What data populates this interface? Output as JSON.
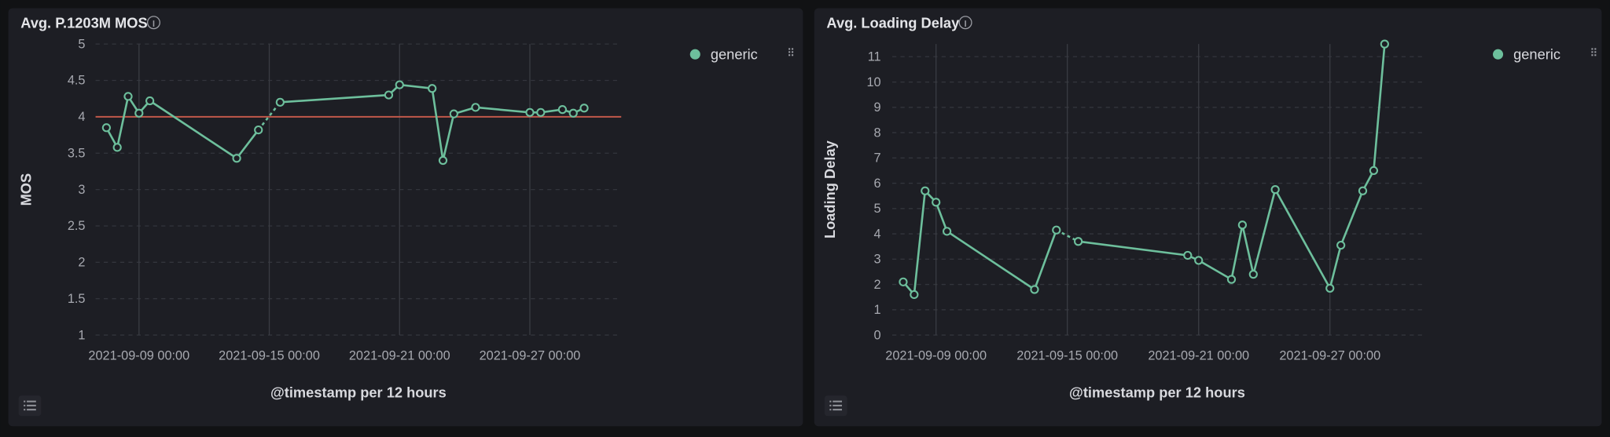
{
  "chart_data": [
    {
      "type": "line",
      "title": "Avg. P.1203M MOS",
      "x_label": "@timestamp per 12 hours",
      "y_label": "MOS",
      "x": [
        "2021-09-07 12:00",
        "2021-09-08 00:00",
        "2021-09-08 12:00",
        "2021-09-09 00:00",
        "2021-09-09 12:00",
        "2021-09-13 12:00",
        "2021-09-14 12:00",
        "2021-09-15 00:00",
        "2021-09-15 12:00",
        "2021-09-20 12:00",
        "2021-09-21 00:00",
        "2021-09-22 12:00",
        "2021-09-23 00:00",
        "2021-09-23 12:00",
        "2021-09-24 12:00",
        "2021-09-27 00:00",
        "2021-09-27 12:00",
        "2021-09-28 12:00",
        "2021-09-29 00:00",
        "2021-09-29 12:00"
      ],
      "series": [
        {
          "name": "generic",
          "color": "#6dbf9c",
          "values": [
            3.85,
            3.58,
            4.28,
            4.05,
            4.22,
            3.43,
            3.82,
            null,
            4.2,
            4.3,
            4.44,
            4.39,
            3.4,
            4.04,
            4.13,
            4.06,
            4.06,
            4.1,
            4.05,
            4.12
          ]
        }
      ],
      "threshold": 4,
      "threshold_color": "#c0584a",
      "xlim": [
        "2021-09-07 00:00",
        "2021-10-01 05:00"
      ],
      "xticks": [
        "2021-09-09 00:00",
        "2021-09-15 00:00",
        "2021-09-21 00:00",
        "2021-09-27 00:00"
      ],
      "ylim": [
        1,
        5
      ],
      "yticks": [
        1,
        1.5,
        2,
        2.5,
        3,
        3.5,
        4,
        4.5,
        5
      ],
      "grid": true,
      "legend": "top-right"
    },
    {
      "type": "line",
      "title": "Avg. Loading Delay",
      "x_label": "@timestamp per 12 hours",
      "y_label": "Loading Delay",
      "x": [
        "2021-09-07 12:00",
        "2021-09-08 00:00",
        "2021-09-08 12:00",
        "2021-09-09 00:00",
        "2021-09-09 12:00",
        "2021-09-13 12:00",
        "2021-09-14 12:00",
        "2021-09-15 00:00",
        "2021-09-15 12:00",
        "2021-09-20 12:00",
        "2021-09-21 00:00",
        "2021-09-22 12:00",
        "2021-09-23 00:00",
        "2021-09-23 12:00",
        "2021-09-24 12:00",
        "2021-09-27 00:00",
        "2021-09-27 12:00",
        "2021-09-28 12:00",
        "2021-09-29 00:00",
        "2021-09-29 12:00"
      ],
      "series": [
        {
          "name": "generic",
          "color": "#6dbf9c",
          "values": [
            2.1,
            1.6,
            5.7,
            5.25,
            4.1,
            1.8,
            4.15,
            null,
            3.7,
            3.15,
            2.95,
            2.2,
            4.35,
            2.4,
            5.75,
            1.85,
            3.55,
            5.7,
            6.5,
            11.5
          ]
        }
      ],
      "xlim": [
        "2021-09-07 00:00",
        "2021-10-01 05:00"
      ],
      "xticks": [
        "2021-09-09 00:00",
        "2021-09-15 00:00",
        "2021-09-21 00:00",
        "2021-09-27 00:00"
      ],
      "ylim": [
        0,
        11.5
      ],
      "yticks": [
        0,
        1,
        2,
        3,
        4,
        5,
        6,
        7,
        8,
        9,
        10,
        11
      ],
      "grid": true,
      "legend": "top-right"
    }
  ]
}
